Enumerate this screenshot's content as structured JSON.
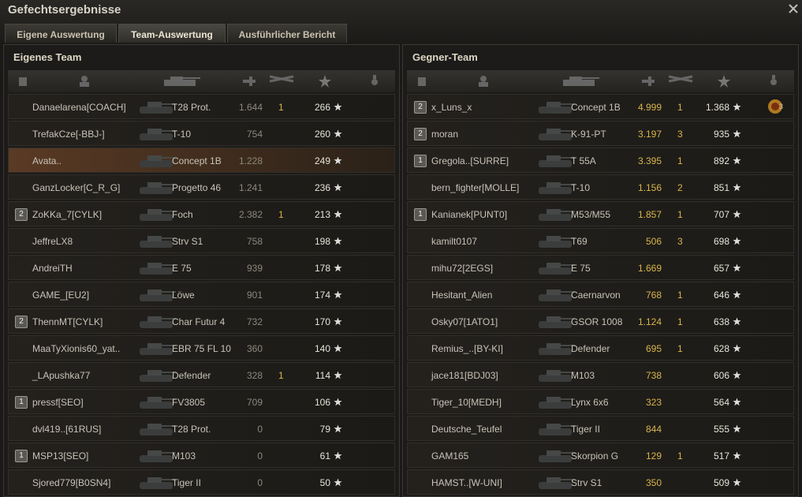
{
  "header": {
    "title": "Gefechtsergebnisse"
  },
  "tabs": [
    "Eigene Auswertung",
    "Team-Auswertung",
    "Ausführlicher Bericht"
  ],
  "teams": [
    {
      "title": "Eigenes Team",
      "rows": [
        {
          "player": "Danaelarena[COACH]",
          "tank": "T28 Prot.",
          "damage": "1.644",
          "kills": "1",
          "xp": "266"
        },
        {
          "player": "TrefakCze[-BBJ-]",
          "tank": "T-10",
          "damage": "754",
          "xp": "260"
        },
        {
          "player": "Avata..",
          "tank": "Concept 1B",
          "damage": "1.228",
          "xp": "249"
        },
        {
          "player": "GanzLocker[C_R_G]",
          "tank": "Progetto 46",
          "damage": "1.241",
          "xp": "236"
        },
        {
          "platoon": "2",
          "player": "ZoKKa_7[CYLK]",
          "tank": "Foch",
          "damage": "2.382",
          "kills": "1",
          "xp": "213"
        },
        {
          "player": "JeffreLX8",
          "tank": "Strv S1",
          "damage": "758",
          "xp": "198"
        },
        {
          "player": "AndreiTH",
          "tank": "E 75",
          "damage": "939",
          "xp": "178"
        },
        {
          "player": "GAME_[EU2]",
          "tank": "Löwe",
          "damage": "901",
          "xp": "174"
        },
        {
          "platoon": "2",
          "player": "ThennMT[CYLK]",
          "tank": "Char Futur 4",
          "damage": "732",
          "xp": "170"
        },
        {
          "player": "MaaTyXionis60_yat..",
          "tank": "EBR 75 FL 10",
          "damage": "360",
          "xp": "140"
        },
        {
          "player": "_LApushka77",
          "tank": "Defender",
          "damage": "328",
          "kills": "1",
          "xp": "114"
        },
        {
          "platoon": "1",
          "player": "pressf[SEO]",
          "tank": "FV3805",
          "damage": "709",
          "xp": "106"
        },
        {
          "player": "dvl419..[61RUS]",
          "tank": "T28 Prot.",
          "damage": "0",
          "xp": "79"
        },
        {
          "platoon": "1",
          "player": "MSP13[SEO]",
          "tank": "M103",
          "damage": "0",
          "xp": "61"
        },
        {
          "player": "Sjored779[B0SN4]",
          "tank": "Tiger II",
          "damage": "0",
          "xp": "50"
        }
      ]
    },
    {
      "title": "Gegner-Team",
      "rows": [
        {
          "platoon": "2",
          "player": "x_Luns_x",
          "tank": "Concept 1B",
          "damage": "4.999",
          "kills": "1",
          "xp": "1.368",
          "medal": "3"
        },
        {
          "platoon": "2",
          "player": "moran",
          "tank": "K-91-PT",
          "damage": "3.197",
          "kills": "3",
          "xp": "935"
        },
        {
          "platoon": "1",
          "player": "Gregola..[SURRE]",
          "tank": "T 55A",
          "damage": "3.395",
          "kills": "1",
          "xp": "892"
        },
        {
          "player": "bern_fighter[MOLLE]",
          "tank": "T-10",
          "damage": "1.156",
          "kills": "2",
          "xp": "851"
        },
        {
          "platoon": "1",
          "player": "Kanianek[PUNT0]",
          "tank": "M53/M55",
          "damage": "1.857",
          "kills": "1",
          "xp": "707"
        },
        {
          "player": "kamilt0107",
          "tank": "T69",
          "damage": "506",
          "kills": "3",
          "xp": "698"
        },
        {
          "player": "mihu72[2EGS]",
          "tank": "E 75",
          "damage": "1.669",
          "xp": "657"
        },
        {
          "player": "Hesitant_Alien",
          "tank": "Caernarvon",
          "damage": "768",
          "kills": "1",
          "xp": "646"
        },
        {
          "player": "Osky07[1ATO1]",
          "tank": "GSOR 1008",
          "damage": "1.124",
          "kills": "1",
          "xp": "638"
        },
        {
          "player": "Remius_..[BY-KI]",
          "tank": "Defender",
          "damage": "695",
          "kills": "1",
          "xp": "628"
        },
        {
          "player": "jace181[BDJ03]",
          "tank": "M103",
          "damage": "738",
          "xp": "606"
        },
        {
          "player": "Tiger_10[MEDH]",
          "tank": "Lynx 6x6",
          "damage": "323",
          "xp": "564"
        },
        {
          "player": "Deutsche_Teufel",
          "tank": "Tiger II",
          "damage": "844",
          "xp": "555"
        },
        {
          "player": "GAM165",
          "tank": "Skorpion G",
          "damage": "129",
          "kills": "1",
          "xp": "517"
        },
        {
          "player": "HAMST..[W-UNI]",
          "tank": "Strv S1",
          "damage": "350",
          "xp": "509"
        }
      ]
    }
  ]
}
